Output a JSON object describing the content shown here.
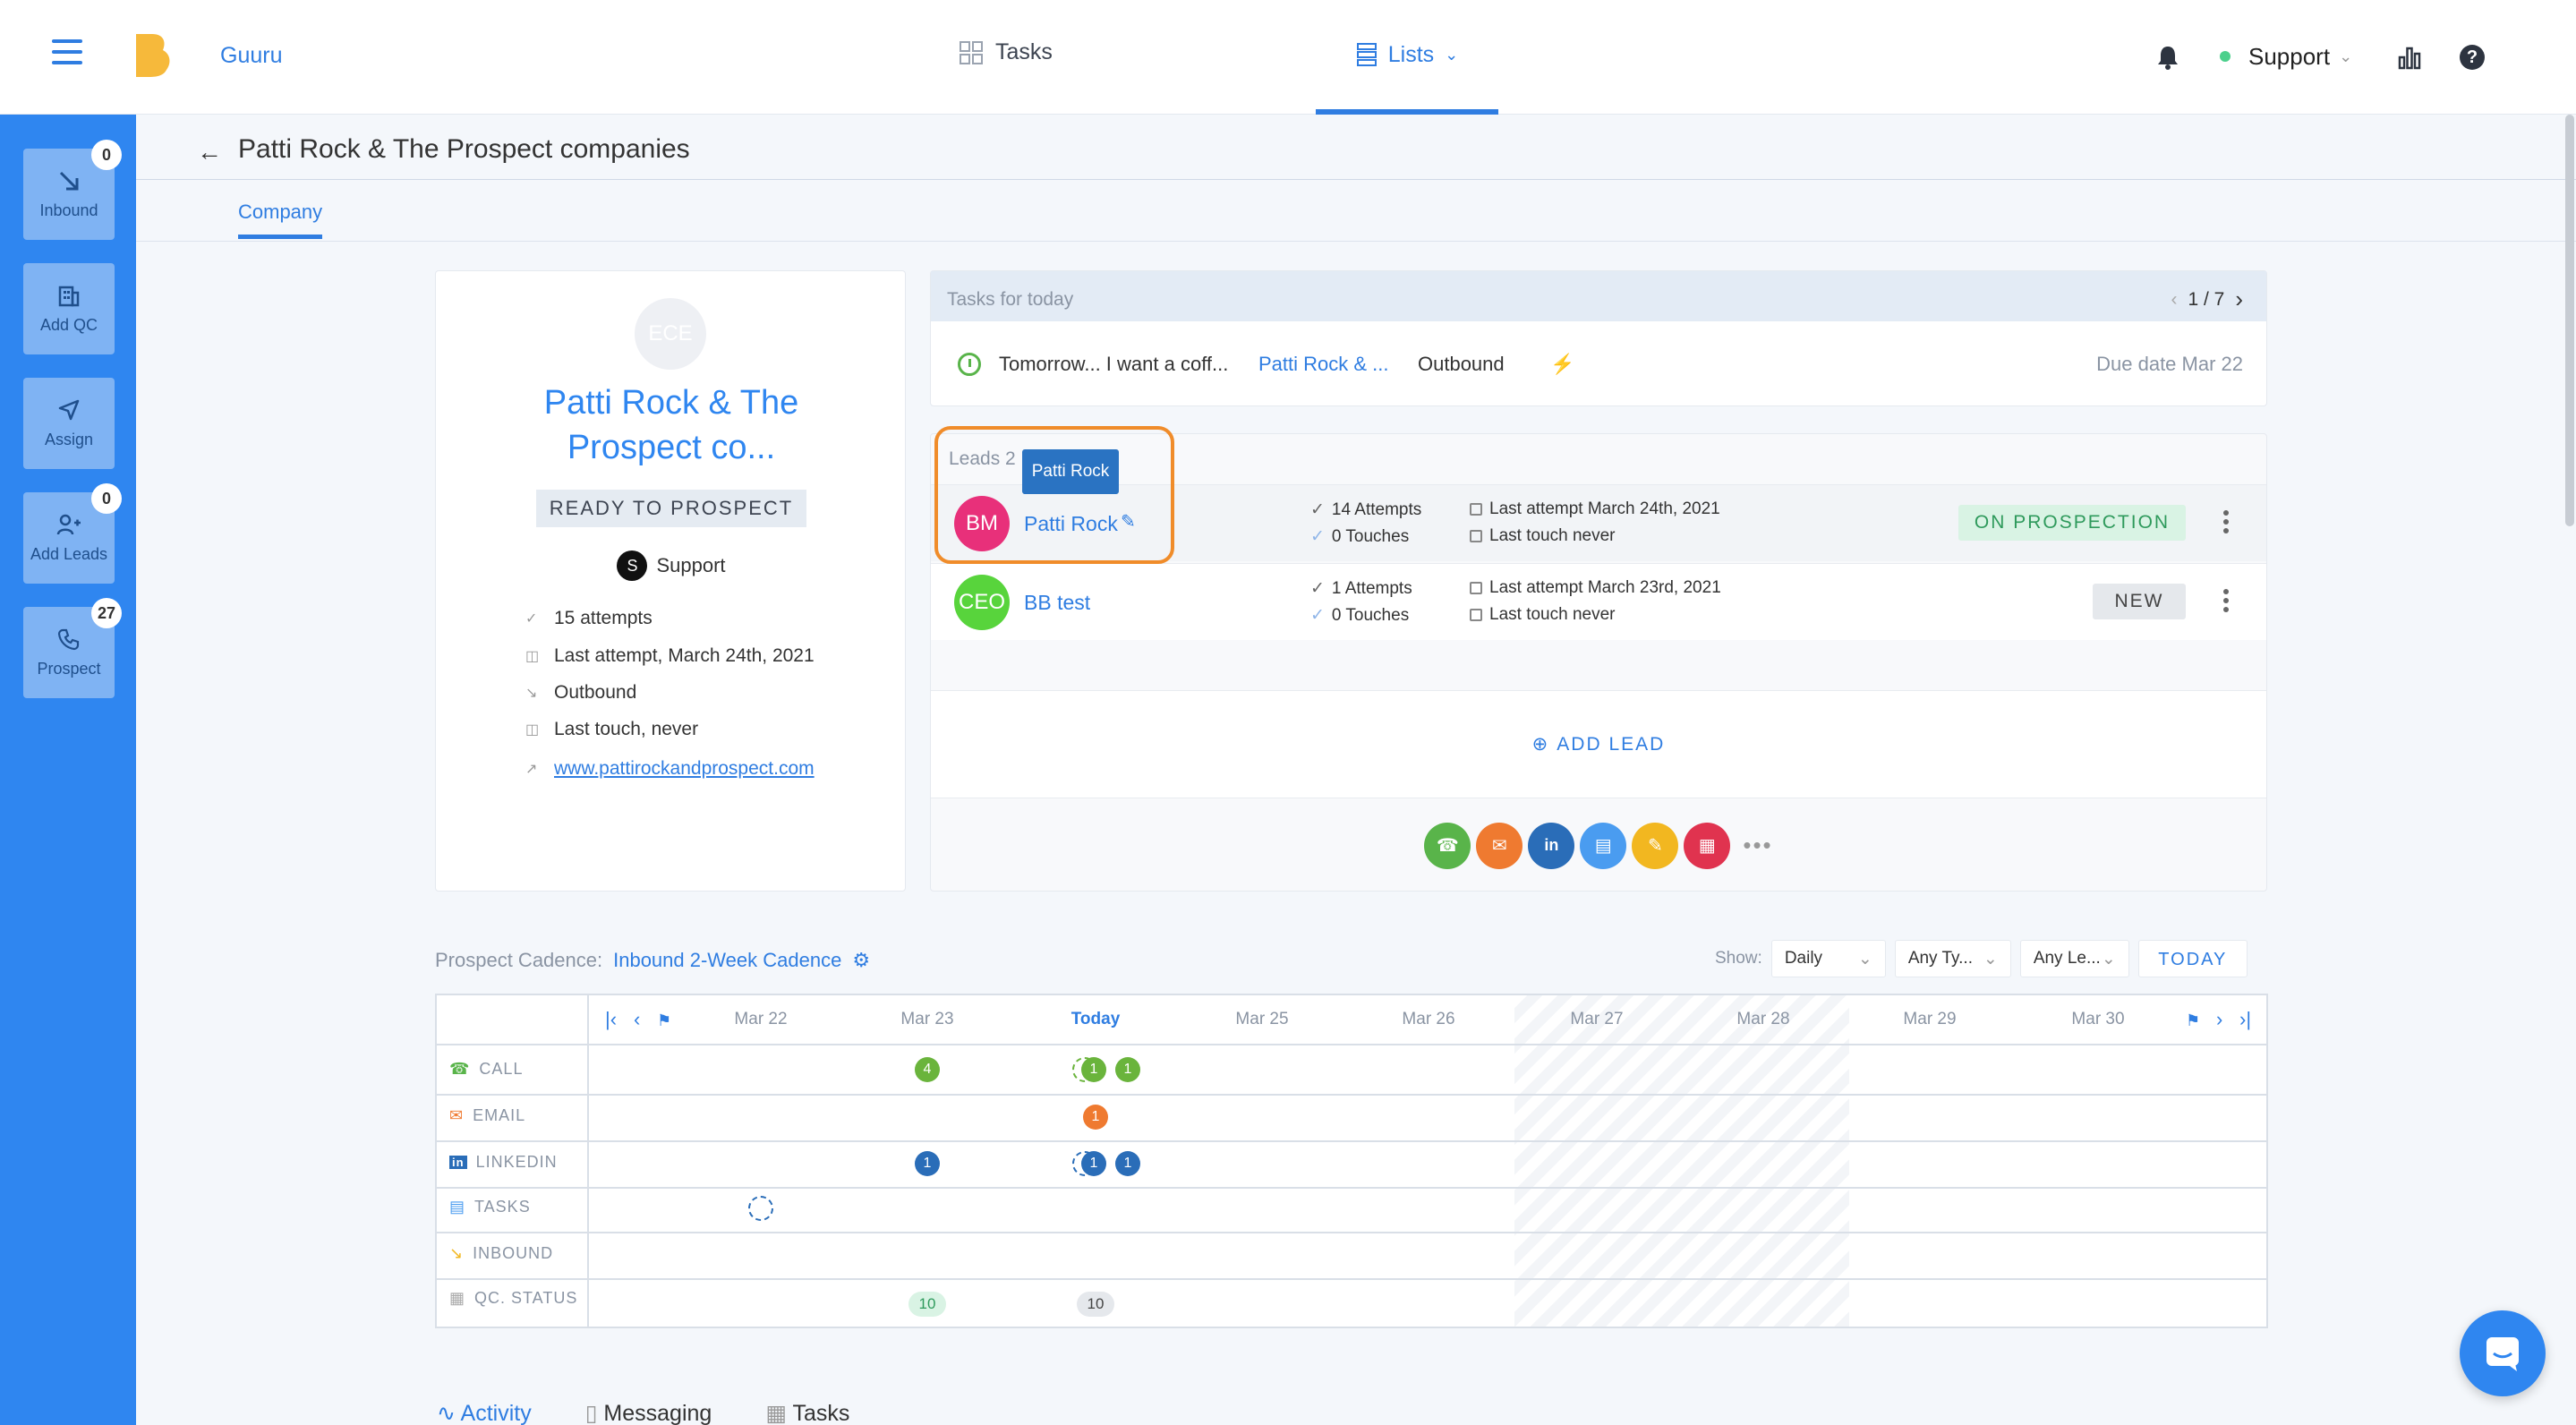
{
  "header": {
    "brand": "Guuru",
    "nav": {
      "tasks": "Tasks",
      "lists": "Lists"
    },
    "user_menu": "Support"
  },
  "sidebar": {
    "items": [
      {
        "label": "Inbound",
        "badge": "0",
        "icon": "arrow-down-right-icon"
      },
      {
        "label": "Add QC",
        "badge": "",
        "icon": "building-icon"
      },
      {
        "label": "Assign",
        "badge": "",
        "icon": "send-icon"
      },
      {
        "label": "Add Leads",
        "badge": "0",
        "icon": "add-user-icon"
      },
      {
        "label": "Prospect",
        "badge": "27",
        "icon": "phone-icon"
      }
    ]
  },
  "page": {
    "title": "Patti Rock & The Prospect companies",
    "tab": "Company"
  },
  "company": {
    "avatar_initials": "ECE",
    "name_line1": "Patti Rock & The",
    "name_line2": "Prospect co...",
    "status": "READY TO PROSPECT",
    "owner_initial": "S",
    "owner": "Support",
    "attempts": "15 attempts",
    "last_attempt": "Last attempt, March 24th, 2021",
    "source": "Outbound",
    "last_touch": "Last touch, never",
    "website": "www.pattirockandprospect.com"
  },
  "tasks_today": {
    "title": "Tasks for today",
    "pager": "1 / 7",
    "task": {
      "text": "Tomorrow... I want a coff...",
      "company": "Patti Rock & ...",
      "type": "Outbound",
      "due": "Due date Mar 22"
    }
  },
  "leads": {
    "title": "Leads 2",
    "tooltip": "Patti Rock",
    "items": [
      {
        "initials": "BM",
        "name": "Patti Rock",
        "attempts": "14 Attempts",
        "touches": "0 Touches",
        "last_attempt": "Last attempt March 24th, 2021",
        "last_touch": "Last touch never",
        "status": "ON PROSPECTION",
        "avatar_color": "#e8307a"
      },
      {
        "initials": "CEO",
        "name": "BB test",
        "attempts": "1 Attempts",
        "touches": "0 Touches",
        "last_attempt": "Last attempt March 23rd, 2021",
        "last_touch": "Last touch never",
        "status": "NEW",
        "avatar_color": "#58d43c"
      }
    ],
    "add_lead": "ADD LEAD",
    "actions": [
      {
        "icon": "phone-icon",
        "color": "#59b44a"
      },
      {
        "icon": "mail-icon",
        "color": "#ef7a30"
      },
      {
        "icon": "linkedin-icon",
        "color": "#2a6db8"
      },
      {
        "icon": "task-icon",
        "color": "#4a9cf0"
      },
      {
        "icon": "note-icon",
        "color": "#f2b720"
      },
      {
        "icon": "calendar-icon",
        "color": "#e0334f"
      }
    ]
  },
  "cadence": {
    "label": "Prospect Cadence:",
    "name": "Inbound 2-Week Cadence",
    "show_label": "Show:",
    "filters": [
      "Daily",
      "Any Ty...",
      "Any Le..."
    ],
    "today_button": "TODAY",
    "dates": [
      "Mar 22",
      "Mar 23",
      "Today",
      "Mar 25",
      "Mar 26",
      "Mar 27",
      "Mar 28",
      "Mar 29",
      "Mar 30"
    ],
    "rows": [
      "CALL",
      "EMAIL",
      "LINKEDIN",
      "TASKS",
      "INBOUND",
      "QC. STATUS"
    ],
    "markers": {
      "call_mar23": "4",
      "call_today_a": "1",
      "call_today_b": "1",
      "email_today": "1",
      "linkedin_mar23": "1",
      "linkedin_today_a": "1",
      "linkedin_today_b": "1",
      "qc_mar23": "10",
      "qc_today": "10"
    }
  },
  "bottom_tabs": [
    "Activity",
    "Messaging",
    "Tasks"
  ]
}
